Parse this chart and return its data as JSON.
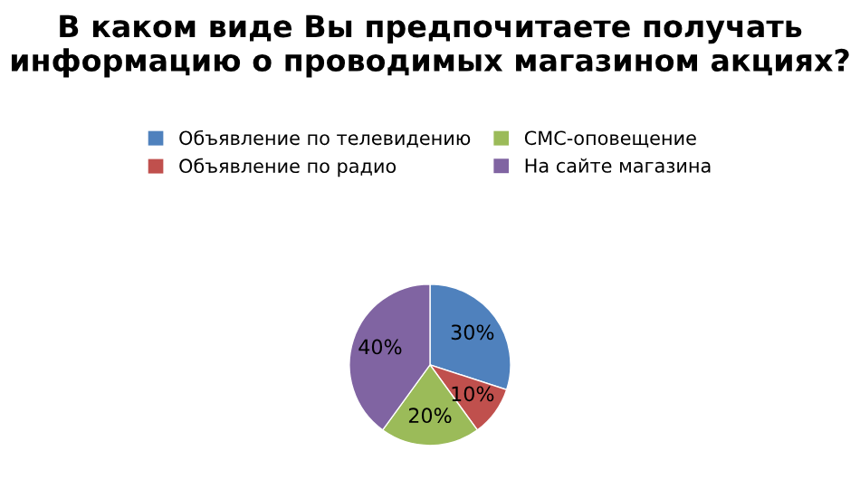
{
  "chart_data": {
    "type": "pie",
    "title": "В каком виде Вы предпочитаете получать информацию о проводимых магазином акциях?",
    "categories": [
      "Объявление по телевидению",
      "Объявление по радио",
      "СМС-оповещение",
      "На сайте магазина"
    ],
    "values": [
      30,
      10,
      20,
      40
    ],
    "colors": [
      "#4f81bd",
      "#c0504d",
      "#9bbb59",
      "#8064a2"
    ],
    "value_labels": [
      "30%",
      "10%",
      "20%",
      "40%"
    ],
    "legend": "top"
  }
}
